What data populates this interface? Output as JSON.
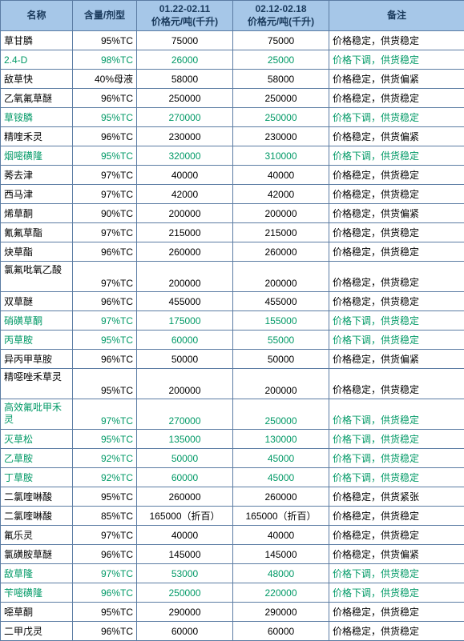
{
  "headers": {
    "name": "名称",
    "spec": "含量/剂型",
    "price1": "01.22-02.11\n价格元/吨(千升)",
    "price2": "02.12-02.18\n价格元/吨(千升)",
    "note": "备注"
  },
  "colors": {
    "header_bg": "#a6c7e8",
    "header_fg": "#1a3a5c",
    "border": "#5b7ca3",
    "green": "#009966",
    "black": "#000000"
  },
  "rows": [
    {
      "name": "草甘膦",
      "nc": "black",
      "spec": "95%TC",
      "sc": "black",
      "p1": "75000",
      "p1c": "black",
      "p2": "75000",
      "p2c": "black",
      "note": "价格稳定，供货稳定",
      "ntc": "black"
    },
    {
      "name": "2.4-D",
      "nc": "green",
      "spec": "98%TC",
      "sc": "green",
      "p1": "26000",
      "p1c": "green",
      "p2": "25000",
      "p2c": "green",
      "note": "价格下调，供货稳定",
      "ntc": "green"
    },
    {
      "name": "敌草快",
      "nc": "black",
      "spec": "40%母液",
      "sc": "black",
      "p1": "58000",
      "p1c": "black",
      "p2": "58000",
      "p2c": "black",
      "note": "价格稳定，供货偏紧",
      "ntc": "black"
    },
    {
      "name": "乙氧氟草醚",
      "nc": "black",
      "spec": "96%TC",
      "sc": "black",
      "p1": "250000",
      "p1c": "black",
      "p2": "250000",
      "p2c": "black",
      "note": "价格稳定，供货稳定",
      "ntc": "black"
    },
    {
      "name": "草铵膦",
      "nc": "green",
      "spec": "95%TC",
      "sc": "green",
      "p1": "270000",
      "p1c": "green",
      "p2": "250000",
      "p2c": "green",
      "note": "价格下调，供货稳定",
      "ntc": "green"
    },
    {
      "name": "精喹禾灵",
      "nc": "black",
      "spec": "96%TC",
      "sc": "black",
      "p1": "230000",
      "p1c": "black",
      "p2": "230000",
      "p2c": "black",
      "note": "价格稳定，供货偏紧",
      "ntc": "black"
    },
    {
      "name": "烟嘧磺隆",
      "nc": "green",
      "spec": "95%TC",
      "sc": "green",
      "p1": "320000",
      "p1c": "green",
      "p2": "310000",
      "p2c": "green",
      "note": "价格下调，供货稳定",
      "ntc": "green"
    },
    {
      "name": "莠去津",
      "nc": "black",
      "spec": "97%TC",
      "sc": "black",
      "p1": "40000",
      "p1c": "black",
      "p2": "40000",
      "p2c": "black",
      "note": "价格稳定，供货稳定",
      "ntc": "black"
    },
    {
      "name": "西马津",
      "nc": "black",
      "spec": "97%TC",
      "sc": "black",
      "p1": "42000",
      "p1c": "black",
      "p2": "42000",
      "p2c": "black",
      "note": "价格稳定，供货稳定",
      "ntc": "black"
    },
    {
      "name": "烯草酮",
      "nc": "black",
      "spec": "90%TC",
      "sc": "black",
      "p1": "200000",
      "p1c": "black",
      "p2": "200000",
      "p2c": "black",
      "note": "价格稳定，供货偏紧",
      "ntc": "black"
    },
    {
      "name": "氰氟草酯",
      "nc": "black",
      "spec": "97%TC",
      "sc": "black",
      "p1": "215000",
      "p1c": "black",
      "p2": "215000",
      "p2c": "black",
      "note": "价格稳定，供货稳定",
      "ntc": "black"
    },
    {
      "name": "炔草酯",
      "nc": "black",
      "spec": "96%TC",
      "sc": "black",
      "p1": "260000",
      "p1c": "black",
      "p2": "260000",
      "p2c": "black",
      "note": "价格稳定，供货稳定",
      "ntc": "black"
    },
    {
      "name": "氯氟吡氧乙酸",
      "nc": "black",
      "spec": "97%TC",
      "sc": "black",
      "p1": "200000",
      "p1c": "black",
      "p2": "200000",
      "p2c": "black",
      "note": "价格稳定，供货稳定",
      "ntc": "black",
      "tall": true
    },
    {
      "name": "双草醚",
      "nc": "black",
      "spec": "96%TC",
      "sc": "black",
      "p1": "455000",
      "p1c": "black",
      "p2": "455000",
      "p2c": "black",
      "note": "价格稳定，供货稳定",
      "ntc": "black"
    },
    {
      "name": "硝磺草酮",
      "nc": "green",
      "spec": "97%TC",
      "sc": "green",
      "p1": "175000",
      "p1c": "green",
      "p2": "155000",
      "p2c": "green",
      "note": "价格下调，供货稳定",
      "ntc": "green"
    },
    {
      "name": "丙草胺",
      "nc": "green",
      "spec": "95%TC",
      "sc": "green",
      "p1": "60000",
      "p1c": "green",
      "p2": "55000",
      "p2c": "green",
      "note": "价格下调，供货稳定",
      "ntc": "green"
    },
    {
      "name": "异丙甲草胺",
      "nc": "black",
      "spec": "96%TC",
      "sc": "black",
      "p1": "50000",
      "p1c": "black",
      "p2": "50000",
      "p2c": "black",
      "note": "价格稳定，供货偏紧",
      "ntc": "black"
    },
    {
      "name": "精噁唑禾草灵",
      "nc": "black",
      "spec": "95%TC",
      "sc": "black",
      "p1": "200000",
      "p1c": "black",
      "p2": "200000",
      "p2c": "black",
      "note": "价格稳定，供货稳定",
      "ntc": "black",
      "tall": true
    },
    {
      "name": "高效氟吡甲禾灵",
      "nc": "green",
      "spec": "97%TC",
      "sc": "green",
      "p1": "270000",
      "p1c": "green",
      "p2": "250000",
      "p2c": "green",
      "note": "价格下调，供货稳定",
      "ntc": "green",
      "tall": true
    },
    {
      "name": "灭草松",
      "nc": "green",
      "spec": "95%TC",
      "sc": "green",
      "p1": "135000",
      "p1c": "green",
      "p2": "130000",
      "p2c": "green",
      "note": "价格下调，供货稳定",
      "ntc": "green"
    },
    {
      "name": "乙草胺",
      "nc": "green",
      "spec": "92%TC",
      "sc": "green",
      "p1": "50000",
      "p1c": "green",
      "p2": "45000",
      "p2c": "green",
      "note": "价格下调，供货稳定",
      "ntc": "green"
    },
    {
      "name": "丁草胺",
      "nc": "green",
      "spec": "92%TC",
      "sc": "green",
      "p1": "60000",
      "p1c": "green",
      "p2": "45000",
      "p2c": "green",
      "note": "价格下调，供货稳定",
      "ntc": "green"
    },
    {
      "name": "二氯喹啉酸",
      "nc": "black",
      "spec": "95%TC",
      "sc": "black",
      "p1": "260000",
      "p1c": "black",
      "p2": "260000",
      "p2c": "black",
      "note": "价格稳定，供货紧张",
      "ntc": "black"
    },
    {
      "name": "二氯喹啉酸",
      "nc": "black",
      "spec": "85%TC",
      "sc": "black",
      "p1": "165000（折百）",
      "p1c": "black",
      "p2": "165000（折百）",
      "p2c": "black",
      "note": "价格稳定，供货稳定",
      "ntc": "black"
    },
    {
      "name": "氟乐灵",
      "nc": "black",
      "spec": "97%TC",
      "sc": "black",
      "p1": "40000",
      "p1c": "black",
      "p2": "40000",
      "p2c": "black",
      "note": "价格稳定，供货稳定",
      "ntc": "black"
    },
    {
      "name": "氯磺胺草醚",
      "nc": "black",
      "spec": "96%TC",
      "sc": "black",
      "p1": "145000",
      "p1c": "black",
      "p2": "145000",
      "p2c": "black",
      "note": "价格稳定，供货偏紧",
      "ntc": "black"
    },
    {
      "name": "敌草隆",
      "nc": "green",
      "spec": "97%TC",
      "sc": "green",
      "p1": "53000",
      "p1c": "green",
      "p2": "48000",
      "p2c": "green",
      "note": "价格下调，供货稳定",
      "ntc": "green"
    },
    {
      "name": "苄嘧磺隆",
      "nc": "green",
      "spec": "96%TC",
      "sc": "green",
      "p1": "250000",
      "p1c": "green",
      "p2": "220000",
      "p2c": "green",
      "note": "价格下调，供货稳定",
      "ntc": "green"
    },
    {
      "name": "噁草酮",
      "nc": "black",
      "spec": "95%TC",
      "sc": "black",
      "p1": "290000",
      "p1c": "black",
      "p2": "290000",
      "p2c": "black",
      "note": "价格稳定，供货稳定",
      "ntc": "black"
    },
    {
      "name": "二甲戊灵",
      "nc": "black",
      "spec": "96%TC",
      "sc": "black",
      "p1": "60000",
      "p1c": "black",
      "p2": "60000",
      "p2c": "black",
      "note": "价格稳定，供货稳定",
      "ntc": "black"
    }
  ]
}
